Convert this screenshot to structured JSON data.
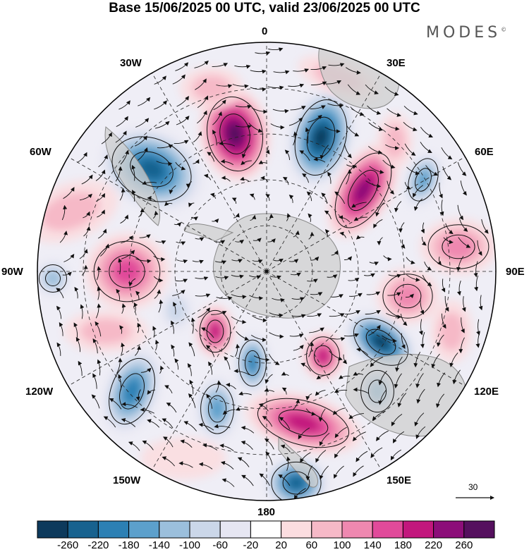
{
  "title": "Base 15/06/2025 00 UTC, valid 23/06/2025 00 UTC",
  "brand": {
    "text": "MODES",
    "mark": "©"
  },
  "longitude_labels": {
    "lon_0": "0",
    "lon_30e": "30E",
    "lon_60e": "60E",
    "lon_90e": "90E",
    "lon_120e": "120E",
    "lon_150e": "150E",
    "lon_180": "180",
    "lon_150w": "150W",
    "lon_120w": "120W",
    "lon_90w": "90W",
    "lon_60w": "60W",
    "lon_30w": "30W"
  },
  "vector_reference": {
    "value": "30"
  },
  "colorbar": {
    "labels": [
      "-260",
      "-220",
      "-180",
      "-140",
      "-100",
      "-60",
      "-20",
      "20",
      "60",
      "100",
      "140",
      "180",
      "220",
      "260"
    ],
    "colors": [
      "#0d3a5c",
      "#17628f",
      "#2c80b4",
      "#5ca0cc",
      "#9bbfdc",
      "#cbd7e9",
      "#e6e6f2",
      "#ffffff",
      "#fbdde0",
      "#f6b9c7",
      "#ef88b0",
      "#e14a9a",
      "#c2177d",
      "#8c0e79",
      "#55105e"
    ]
  },
  "colors": {
    "land": "#cfcfcf",
    "coastline": "#8a8a8a",
    "graticule": "#222222",
    "vector": "#111111"
  }
}
